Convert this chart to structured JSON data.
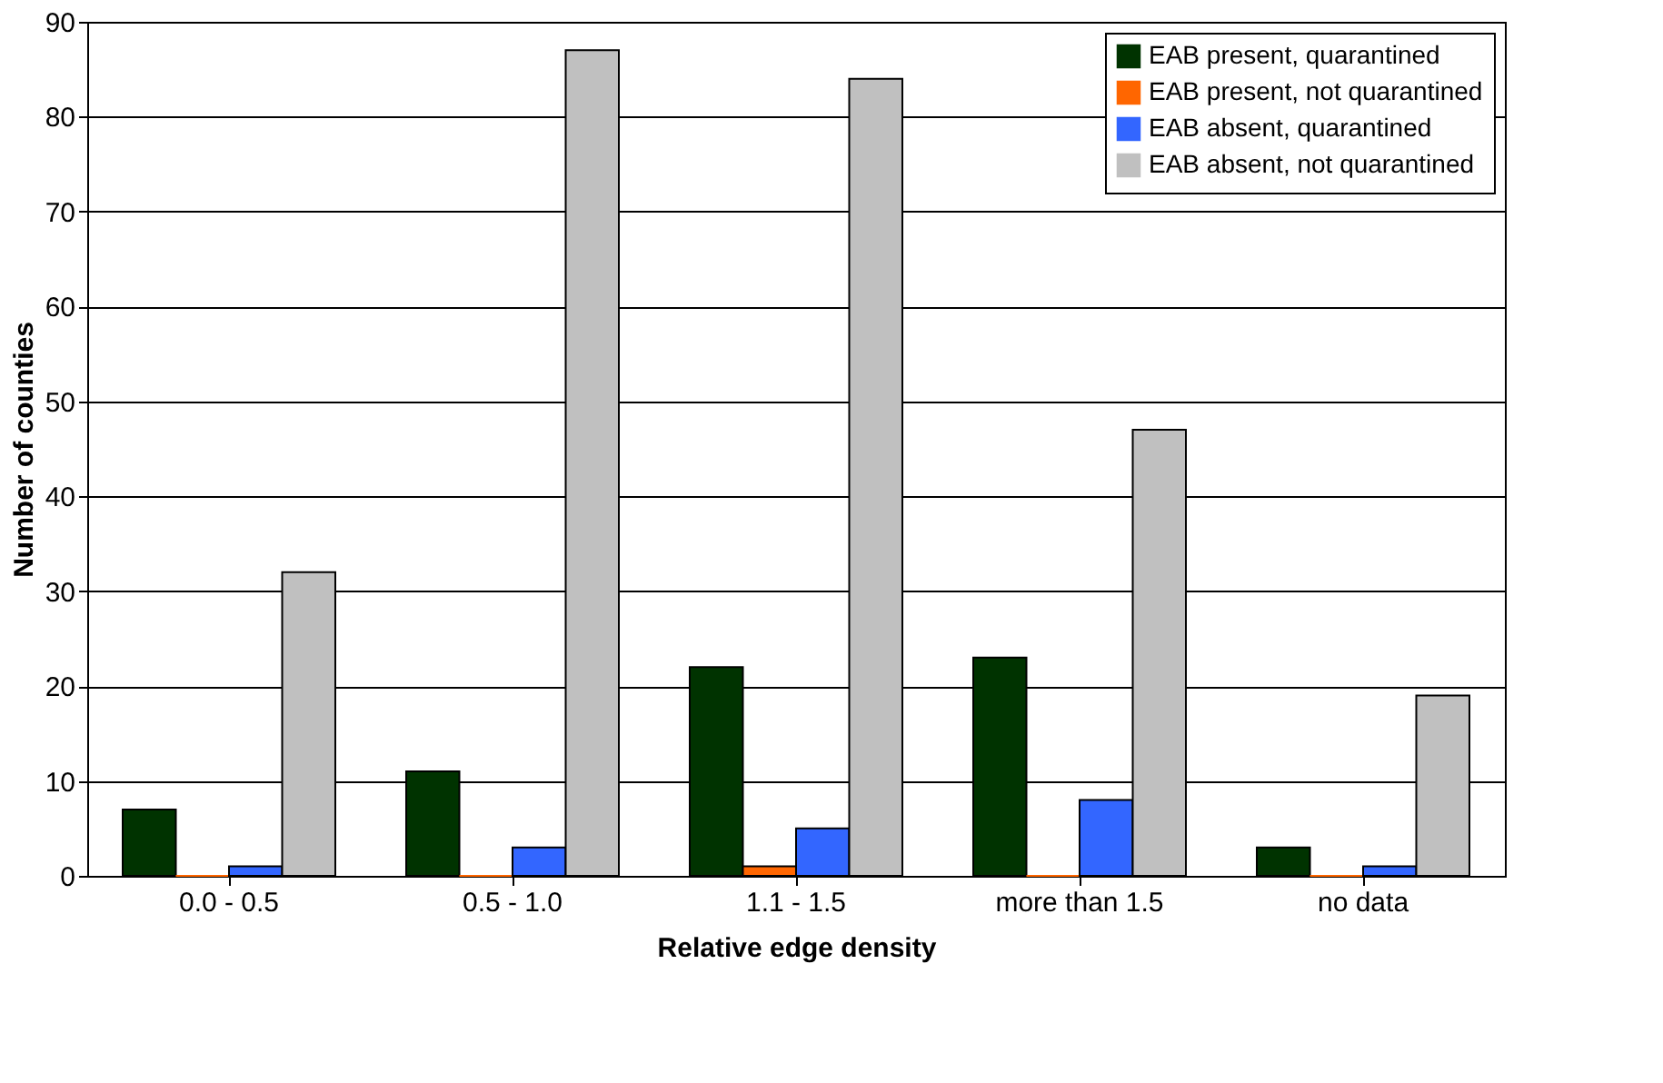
{
  "chart_data": {
    "type": "bar",
    "xlabel": "Relative edge density",
    "ylabel": "Number of counties",
    "categories": [
      "0.0 - 0.5",
      "0.5 - 1.0",
      "1.1 - 1.5",
      "more than 1.5",
      "no data"
    ],
    "series": [
      {
        "name": "EAB present, quarantined",
        "color": "#003300",
        "values": [
          7,
          11,
          22,
          23,
          3
        ]
      },
      {
        "name": "EAB present, not quarantined",
        "color": "#ff6600",
        "values": [
          0,
          0,
          1,
          0,
          0
        ]
      },
      {
        "name": "EAB absent, quarantined",
        "color": "#3366ff",
        "values": [
          1,
          3,
          5,
          8,
          1
        ]
      },
      {
        "name": "EAB absent, not quarantined",
        "color": "#c0c0c0",
        "values": [
          32,
          87,
          84,
          47,
          19
        ]
      }
    ],
    "ylim": [
      0,
      90
    ],
    "yticks": [
      0,
      10,
      20,
      30,
      40,
      50,
      60,
      70,
      80,
      90
    ],
    "grid": "y",
    "legend": "top right"
  }
}
